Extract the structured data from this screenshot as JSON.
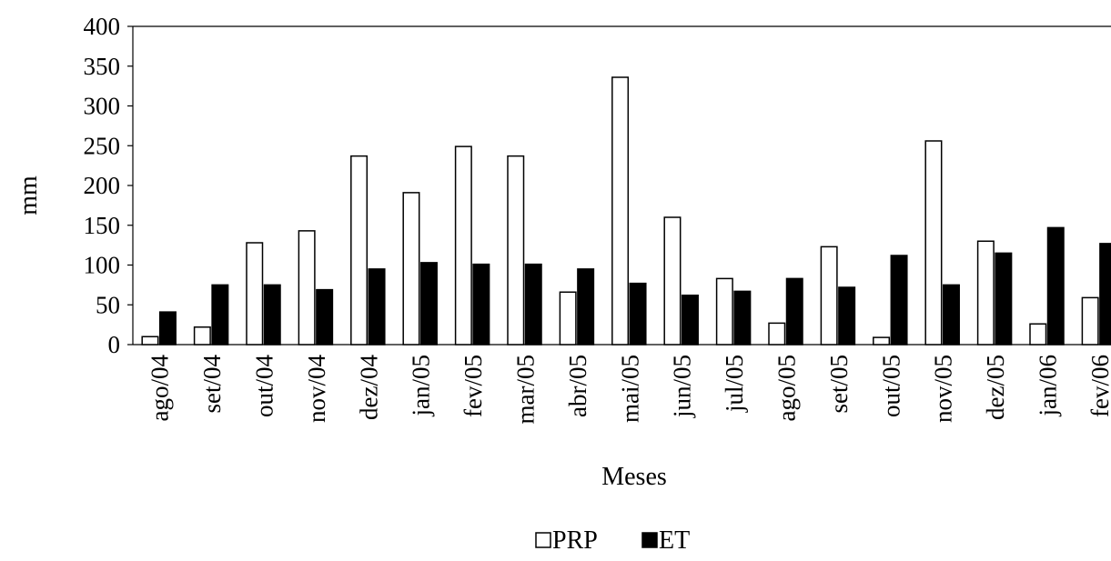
{
  "chart_data": {
    "type": "bar",
    "title": "",
    "xlabel": "Meses",
    "ylabel": "mm",
    "ylim": [
      0,
      400
    ],
    "yticks": [
      0,
      50,
      100,
      150,
      200,
      250,
      300,
      350,
      400
    ],
    "grid": false,
    "legend_position": "bottom-center",
    "categories": [
      "ago/04",
      "set/04",
      "out/04",
      "nov/04",
      "dez/04",
      "jan/05",
      "fev/05",
      "mar/05",
      "abr/05",
      "mai/05",
      "jun/05",
      "jul/05",
      "ago/05",
      "set/05",
      "out/05",
      "nov/05",
      "dez/05",
      "jan/06",
      "fev/06"
    ],
    "series": [
      {
        "name": "PRP",
        "fill": "#ffffff",
        "stroke": "#000000",
        "values": [
          10,
          22,
          128,
          143,
          237,
          191,
          249,
          237,
          66,
          336,
          160,
          83,
          27,
          123,
          9,
          256,
          130,
          26,
          59
        ]
      },
      {
        "name": "ET",
        "fill": "#000000",
        "stroke": "#000000",
        "values": [
          41,
          75,
          75,
          69,
          95,
          103,
          101,
          101,
          95,
          77,
          62,
          67,
          83,
          72,
          112,
          75,
          115,
          147,
          127
        ]
      }
    ]
  }
}
